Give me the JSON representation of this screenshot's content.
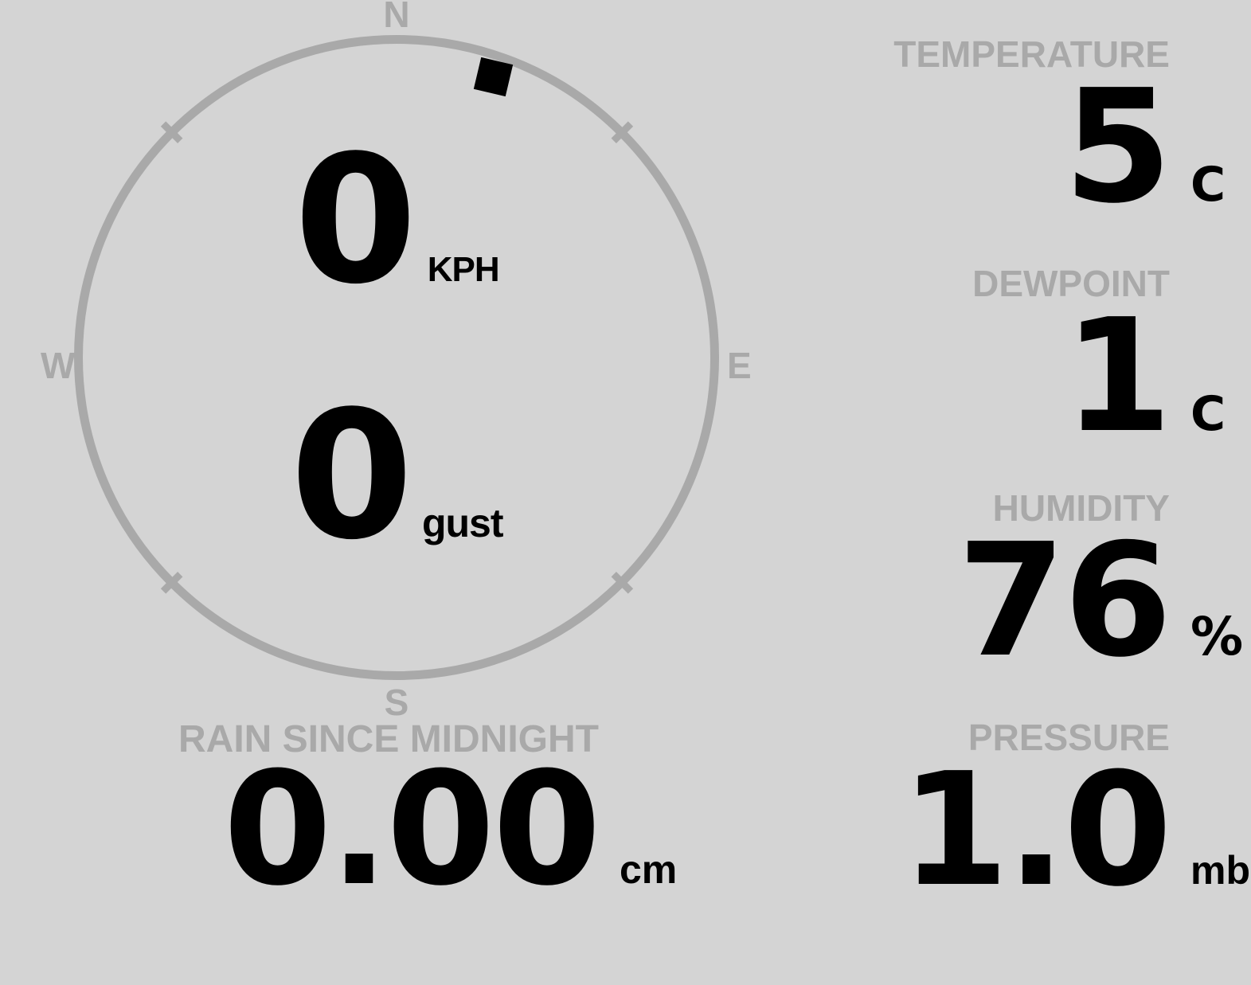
{
  "wind": {
    "speed": "0",
    "speed_unit": "KPH",
    "gust": "0",
    "gust_unit": "gust",
    "direction_deg": 19,
    "cardinals": {
      "north": "N",
      "south": "S",
      "east": "E",
      "west": "W"
    }
  },
  "stats": [
    {
      "id": "temperature",
      "label": "TEMPERATURE",
      "value": "5",
      "unit": "C"
    },
    {
      "id": "dewpoint",
      "label": "DEWPOINT",
      "value": "1",
      "unit": "C"
    },
    {
      "id": "humidity",
      "label": "HUMIDITY",
      "value": "76",
      "unit": "%"
    },
    {
      "id": "pressure",
      "label": "PRESSURE",
      "value": "1.0",
      "unit": "mb"
    }
  ],
  "rain": {
    "label": "RAIN SINCE MIDNIGHT",
    "value": "0.00",
    "unit": "cm"
  },
  "colors": {
    "background": "#d4d4d4",
    "muted": "#a9a9a9",
    "value": "#000000"
  }
}
